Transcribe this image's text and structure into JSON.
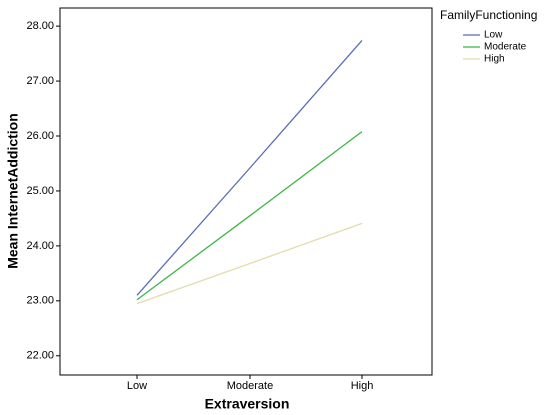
{
  "chart_data": {
    "type": "line",
    "x_label": "Extraversion",
    "y_label": "Mean InternetAddiction",
    "legend_title": "FamilyFunctioning",
    "categories": [
      "Low",
      "Moderate",
      "High"
    ],
    "series": [
      {
        "name": "Low",
        "color": "#5b6bb8",
        "values": [
          23.1,
          25.42,
          27.74
        ]
      },
      {
        "name": "Moderate",
        "color": "#3db54a",
        "values": [
          23.02,
          24.55,
          26.08
        ]
      },
      {
        "name": "High",
        "color": "#e2ddab",
        "values": [
          22.95,
          23.68,
          24.41
        ]
      }
    ],
    "ylim": [
      21.65,
      28.33
    ],
    "yticks": [
      {
        "value": 22,
        "label": "22.00"
      },
      {
        "value": 23,
        "label": "23.00"
      },
      {
        "value": 24,
        "label": "24.00"
      },
      {
        "value": 25,
        "label": "25.00"
      },
      {
        "value": 26,
        "label": "26.00"
      },
      {
        "value": 27,
        "label": "27.00"
      },
      {
        "value": 28,
        "label": "28.00"
      }
    ],
    "legend_position": "right"
  }
}
